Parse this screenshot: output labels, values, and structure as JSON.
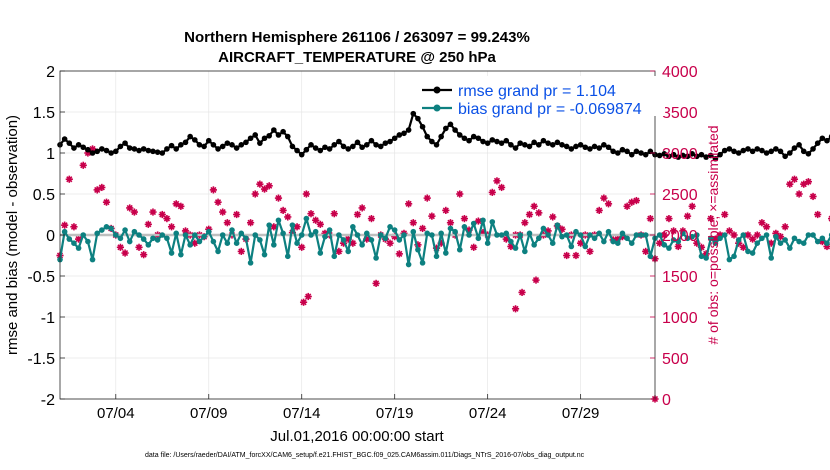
{
  "chart_data": {
    "type": "line",
    "title_line1": "Northern Hemisphere 261106 / 263097 = 99.243%",
    "title_line2": "AIRCRAFT_TEMPERATURE @ 250 hPa",
    "xlabel": "Jul.01,2016 00:00:00 start",
    "ylabel_left": "rmse and bias (model - observation)",
    "ylabel_right": "# of obs: o=possible; ×=assimilated",
    "footer": "data file: /Users/raeder/DAI/ATM_forcXX/CAM6_setup/f.e21.FHIST_BGC.f09_025.CAM6assim.011/Diags_NTrS_2016-07/obs_diag_output.nc",
    "x_ticks": [
      "07/04",
      "07/09",
      "07/14",
      "07/19",
      "07/24",
      "07/29"
    ],
    "x_tick_days": [
      4,
      9,
      14,
      19,
      24,
      29
    ],
    "xlim": [
      1,
      33
    ],
    "ylim_left": [
      -2,
      2
    ],
    "y_ticks_left": [
      "-2",
      "-1.5",
      "-1",
      "-0.5",
      "0",
      "0.5",
      "1",
      "1.5",
      "2"
    ],
    "ylim_right": [
      0,
      4000
    ],
    "y_ticks_right": [
      "0",
      "500",
      "1000",
      "1500",
      "2000",
      "2500",
      "3000",
      "3500",
      "4000"
    ],
    "legend": [
      {
        "label": "rmse grand pr = 1.104",
        "color": "#000000"
      },
      {
        "label": "bias grand pr = -0.069874",
        "color": "#0d8080"
      }
    ],
    "colors": {
      "rmse": "#000000",
      "bias": "#0d8080",
      "obs": "#c8004b",
      "zero_line": "#bfbfbf"
    },
    "day_start": 1.0,
    "day_step": 0.25,
    "rmse": [
      1.1,
      1.17,
      1.12,
      1.06,
      1.1,
      1.07,
      1.04,
      1.0,
      1.02,
      1.05,
      1.03,
      1.0,
      1.02,
      1.08,
      1.12,
      1.06,
      1.05,
      1.03,
      1.05,
      1.03,
      1.02,
      1.01,
      1.0,
      1.05,
      1.09,
      1.05,
      1.1,
      1.13,
      1.2,
      1.16,
      1.1,
      1.08,
      1.15,
      1.1,
      1.05,
      1.08,
      1.12,
      1.1,
      1.06,
      1.1,
      1.13,
      1.18,
      1.22,
      1.12,
      1.18,
      1.21,
      1.28,
      1.22,
      1.26,
      1.2,
      1.08,
      1.03,
      0.98,
      1.04,
      1.1,
      1.06,
      1.03,
      1.07,
      1.05,
      1.1,
      1.14,
      1.08,
      1.05,
      1.08,
      1.13,
      1.07,
      1.1,
      1.15,
      1.1,
      1.08,
      1.12,
      1.14,
      1.18,
      1.22,
      1.24,
      1.28,
      1.48,
      1.42,
      1.32,
      1.2,
      1.14,
      1.1,
      1.2,
      1.3,
      1.35,
      1.28,
      1.22,
      1.18,
      1.15,
      1.2,
      1.18,
      1.14,
      1.12,
      1.16,
      1.14,
      1.12,
      1.15,
      1.1,
      1.06,
      1.12,
      1.1,
      1.08,
      1.13,
      1.1,
      1.15,
      1.12,
      1.1,
      1.13,
      1.1,
      1.08,
      1.05,
      1.08,
      1.1,
      1.07,
      1.05,
      1.08,
      1.06,
      1.1,
      1.07,
      1.02,
      1.0,
      1.04,
      1.02,
      0.98,
      1.02,
      1.0,
      0.98,
      1.02,
      0.98,
      0.97,
      0.99,
      0.96,
      0.98,
      0.95,
      0.97,
      0.96,
      0.99,
      0.96,
      0.98,
      0.95,
      0.97,
      0.93,
      0.98,
      1.03,
      1.05,
      1.02,
      1.0,
      1.03,
      1.05,
      1.02,
      1.05,
      1.03,
      1.0,
      1.02,
      1.05,
      1.02,
      0.96,
      1.0,
      1.06,
      1.1,
      1.02,
      0.99,
      1.05,
      1.12,
      1.18,
      1.15,
      1.2,
      1.18,
      1.16
    ],
    "bias": [
      -0.3,
      0.04,
      -0.05,
      -0.1,
      -0.16,
      0.0,
      -0.08,
      -0.3,
      0.02,
      0.06,
      0.1,
      0.08,
      0.0,
      -0.04,
      0.06,
      -0.08,
      0.04,
      0.0,
      -0.05,
      -0.12,
      -0.04,
      -0.06,
      0.0,
      -0.04,
      -0.22,
      0.02,
      -0.24,
      0.0,
      -0.12,
      0.0,
      -0.08,
      -0.02,
      0.04,
      -0.08,
      -0.2,
      0.0,
      -0.1,
      0.06,
      -0.1,
      0.02,
      -0.04,
      -0.34,
      0.0,
      -0.06,
      -0.24,
      0.12,
      -0.12,
      0.18,
      0.02,
      -0.26,
      0.12,
      -0.1,
      0.0,
      0.2,
      0.0,
      0.04,
      -0.22,
      -0.02,
      0.06,
      -0.26,
      0.0,
      -0.06,
      -0.2,
      0.1,
      0.0,
      -0.12,
      0.02,
      -0.06,
      -0.28,
      0.0,
      -0.04,
      0.1,
      0.06,
      -0.06,
      0.0,
      -0.36,
      0.04,
      -0.18,
      -0.34,
      0.02,
      0.0,
      -0.26,
      0.02,
      -0.22,
      0.08,
      0.04,
      -0.18,
      0.1,
      0.0,
      0.14,
      -0.04,
      0.18,
      -0.1,
      0.16,
      0.0,
      0.0,
      0.02,
      -0.08,
      -0.16,
      0.0,
      -0.2,
      0.02,
      -0.12,
      -0.04,
      0.08,
      0.0,
      -0.1,
      0.12,
      -0.02,
      0.0,
      -0.14,
      0.04,
      0.0,
      -0.14,
      0.0,
      -0.04,
      0.02,
      -0.08,
      0.04,
      -0.08,
      -0.1,
      0.02,
      -0.04,
      -0.1,
      0.0,
      0.0,
      0.0,
      -0.26,
      -0.04,
      0.0,
      -0.12,
      -0.16,
      -0.06,
      -0.08,
      0.02,
      -0.04,
      -0.02,
      0.0,
      -0.26,
      -0.28,
      -0.04,
      -0.1,
      -0.04,
      0.0,
      -0.3,
      -0.26,
      -0.06,
      0.0,
      -0.2,
      -0.22,
      -0.1,
      -0.04,
      0.0,
      -0.28,
      -0.02,
      -0.1,
      -0.06,
      -0.16,
      -0.04,
      -0.08,
      -0.1,
      0.0,
      0.0,
      -0.08,
      -0.04,
      -0.1,
      0.0,
      0.04,
      -0.02,
      -0.04,
      -0.02
    ],
    "obs_assimilated": [
      1750,
      2120,
      2680,
      2100,
      1950,
      2850,
      3000,
      3050,
      2550,
      2580,
      2400,
      2080,
      2000,
      1850,
      1780,
      2330,
      2280,
      1850,
      1760,
      2130,
      2280,
      2000,
      2250,
      2200,
      2100,
      2380,
      2350,
      2050,
      2000,
      1900,
      2000,
      1980,
      2070,
      2550,
      2400,
      2280,
      2150,
      2000,
      2250,
      1800,
      1950,
      2150,
      2500,
      2620,
      2560,
      2600,
      2100,
      2450,
      2300,
      2220,
      2030,
      2100,
      1850,
      2500,
      2260,
      2180,
      2130,
      2020,
      2000,
      2260,
      1800,
      1900,
      1950,
      1900,
      2250,
      2330,
      1950,
      2200,
      1410,
      2000,
      1950,
      1900,
      1980,
      1770,
      2020,
      2380,
      2150,
      1880,
      2080,
      2450,
      2230,
      1840,
      1900,
      2300,
      2150,
      2000,
      2500,
      2200,
      2060,
      1850,
      2170,
      2030,
      2000,
      2520,
      2660,
      2580,
      1950,
      1860,
      2000,
      2000,
      2150,
      2250,
      2350,
      2270,
      2000,
      2050,
      2220,
      2110,
      2070,
      1750,
      2000,
      1750,
      1900,
      2000,
      1800,
      2000,
      2300,
      2450,
      2380,
      1940,
      1950,
      1980,
      2350,
      2400,
      2420,
      2000,
      1800,
      2200,
      1710,
      1900,
      2000,
      2200,
      2050,
      1860,
      2050,
      2230,
      2350,
      1900,
      1850,
      1770,
      2200,
      1950,
      2000,
      2250,
      2050,
      2000,
      1900,
      1850,
      2000,
      1950,
      2000,
      2150,
      2100,
      1900,
      2020,
      1980,
      2100,
      2620,
      2680,
      2500,
      2620,
      2650,
      2470,
      2250,
      1920,
      1860,
      2200,
      2000,
      2680,
      2450,
      1820
    ],
    "obs_extra": [
      {
        "day": 25.5,
        "value": 1100
      },
      {
        "day": 25.85,
        "value": 1300
      },
      {
        "day": 26.6,
        "value": 1450
      },
      {
        "day": 14.1,
        "value": 1180
      },
      {
        "day": 14.35,
        "value": 1250
      },
      {
        "day": 33.0,
        "value": 0
      }
    ]
  }
}
